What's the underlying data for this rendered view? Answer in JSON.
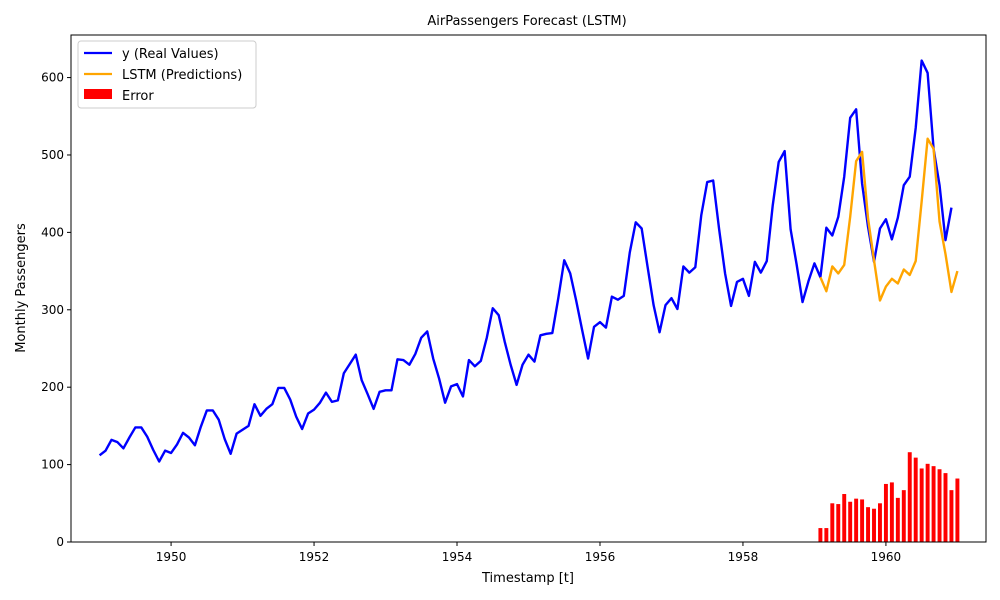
{
  "chart_data": {
    "type": "line",
    "title": "AirPassengers Forecast (LSTM)",
    "xlabel": "Timestamp [t]",
    "ylabel": "Monthly Passengers",
    "xlim": [
      1948.6,
      1961.4
    ],
    "ylim": [
      0,
      655
    ],
    "xticks": [
      1950,
      1952,
      1954,
      1956,
      1958,
      1960
    ],
    "yticks": [
      0,
      100,
      200,
      300,
      400,
      500,
      600
    ],
    "grid": false,
    "legend_position": "top-left",
    "colors": {
      "real": "#0000ff",
      "pred": "#ffa500",
      "error": "#ff0000"
    },
    "series": [
      {
        "name": "y (Real Values)",
        "start_year": 1949,
        "start_month": 1,
        "values": [
          112,
          118,
          132,
          129,
          121,
          135,
          148,
          148,
          136,
          119,
          104,
          118,
          115,
          126,
          141,
          135,
          125,
          149,
          170,
          170,
          158,
          133,
          114,
          140,
          145,
          150,
          178,
          163,
          172,
          178,
          199,
          199,
          184,
          162,
          146,
          166,
          171,
          180,
          193,
          181,
          183,
          218,
          230,
          242,
          209,
          191,
          172,
          194,
          196,
          196,
          236,
          235,
          229,
          243,
          264,
          272,
          237,
          211,
          180,
          201,
          204,
          188,
          235,
          227,
          234,
          264,
          302,
          293,
          259,
          229,
          203,
          229,
          242,
          233,
          267,
          269,
          270,
          315,
          364,
          347,
          312,
          274,
          237,
          278,
          284,
          277,
          317,
          313,
          318,
          374,
          413,
          405,
          355,
          306,
          271,
          306,
          315,
          301,
          356,
          348,
          355,
          422,
          465,
          467,
          404,
          347,
          305,
          336,
          340,
          318,
          362,
          348,
          363,
          435,
          491,
          505,
          404,
          359,
          310,
          337,
          360,
          342,
          406,
          396,
          420,
          472,
          548,
          559,
          463,
          407,
          362,
          405,
          417,
          391,
          419,
          461,
          472,
          535,
          622,
          606,
          508,
          461,
          390,
          432
        ]
      },
      {
        "name": "LSTM (Predictions)",
        "start_year": 1959,
        "start_month": 2,
        "values": [
          342,
          324,
          356,
          347,
          358,
          420,
          492,
          504,
          418,
          364,
          312,
          330,
          340,
          334,
          352,
          345,
          363,
          440,
          521,
          508,
          414,
          372,
          323,
          350
        ]
      },
      {
        "name": "Error",
        "type": "bar",
        "start_year": 1959,
        "start_month": 2,
        "values": [
          18,
          18,
          50,
          49,
          62,
          52,
          56,
          55,
          45,
          43,
          50,
          75,
          77,
          57,
          67,
          116,
          109,
          95,
          101,
          98,
          94,
          89,
          67,
          82
        ]
      }
    ]
  }
}
